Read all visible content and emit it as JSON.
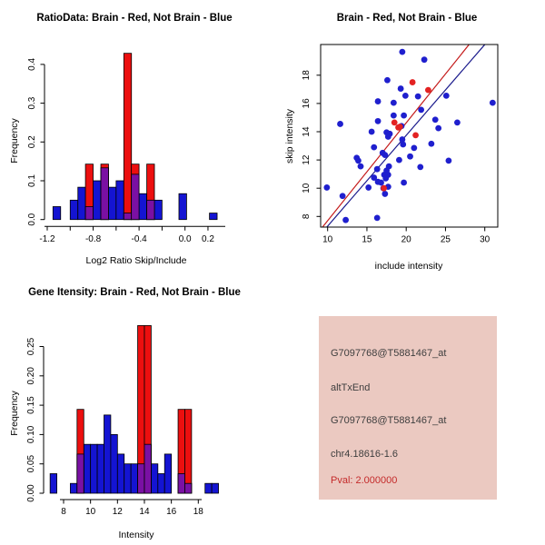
{
  "window_title": "R Graphics Output",
  "colors": {
    "background": "#FFFFFF",
    "axis_black": "#000000",
    "not_brain_blue": "#1414D2",
    "brain_red": "#EC0F0F",
    "overlap_purple": "#7A10A3",
    "point_blue": "#1F1FCE",
    "point_red": "#E32222",
    "red_line": "#C41A1A",
    "blue_line": "#1A1A8C",
    "panel_pink": "#EBC9C1",
    "info_text_gray": "#3E3E3E",
    "pval_red": "#C42A2A"
  },
  "chart_data": [
    {
      "id": "ratio_histogram",
      "type": "bar",
      "title": "RatioData: Brain - Red, Not Brain - Blue",
      "xlabel": "Log2 Ratio Skip/Include",
      "ylabel": "Frequency",
      "xlim": [
        -1.25,
        0.34
      ],
      "ylim": [
        0,
        0.45
      ],
      "bin_width": 0.0667,
      "x_ticks": [
        {
          "v": -1.2,
          "label": "-1.2"
        },
        {
          "v": -1.0,
          "label": ""
        },
        {
          "v": -0.8,
          "label": "-0.8"
        },
        {
          "v": -0.6,
          "label": ""
        },
        {
          "v": -0.4,
          "label": "-0.4"
        },
        {
          "v": -0.2,
          "label": ""
        },
        {
          "v": 0.0,
          "label": "0.0"
        },
        {
          "v": 0.2,
          "label": "0.2"
        }
      ],
      "y_ticks": [
        {
          "v": 0.0,
          "label": "0.0"
        },
        {
          "v": 0.1,
          "label": "0.1"
        },
        {
          "v": 0.2,
          "label": "0.2"
        },
        {
          "v": 0.3,
          "label": "0.3"
        },
        {
          "v": 0.4,
          "label": "0.4"
        }
      ],
      "series": [
        {
          "name": "Not Brain",
          "color_key": "not_brain_blue",
          "bars": [
            [
              -1.15,
              0.0333
            ],
            [
              -1.0,
              0.05
            ],
            [
              -0.933,
              0.0833
            ],
            [
              -0.867,
              0.0333
            ],
            [
              -0.8,
              0.1
            ],
            [
              -0.733,
              0.1333
            ],
            [
              -0.667,
              0.0833
            ],
            [
              -0.6,
              0.1
            ],
            [
              -0.533,
              0.0167
            ],
            [
              -0.467,
              0.1167
            ],
            [
              -0.4,
              0.0667
            ],
            [
              -0.333,
              0.05
            ],
            [
              -0.267,
              0.05
            ],
            [
              -0.053,
              0.0667
            ],
            [
              0.213,
              0.0167
            ]
          ]
        },
        {
          "name": "Brain",
          "color_key": "brain_red",
          "bars": [
            [
              -0.867,
              0.1429
            ],
            [
              -0.733,
              0.1429
            ],
            [
              -0.533,
              0.4286
            ],
            [
              -0.467,
              0.1429
            ],
            [
              -0.333,
              0.1429
            ]
          ]
        }
      ]
    },
    {
      "id": "intensity_scatter",
      "type": "scatter",
      "title": "Brain - Red, Not Brain - Blue",
      "xlabel": "include intensity",
      "ylabel": "skip intensity",
      "xlim": [
        9.1,
        31.65
      ],
      "ylim": [
        7.25,
        20.17
      ],
      "x_ticks": [
        {
          "v": 10,
          "label": "10"
        },
        {
          "v": 15,
          "label": "15"
        },
        {
          "v": 20,
          "label": "20"
        },
        {
          "v": 25,
          "label": "25"
        },
        {
          "v": 30,
          "label": "30"
        }
      ],
      "y_ticks": [
        {
          "v": 8,
          "label": "8"
        },
        {
          "v": 10,
          "label": "10"
        },
        {
          "v": 12,
          "label": "12"
        },
        {
          "v": 14,
          "label": "14"
        },
        {
          "v": 16,
          "label": "16"
        },
        {
          "v": 18,
          "label": "18"
        }
      ],
      "series": [
        {
          "name": "Not Brain",
          "color_key": "point_blue",
          "points": [
            [
              19.5,
              19.65
            ],
            [
              22.3,
              19.1
            ],
            [
              17.6,
              17.65
            ],
            [
              19.3,
              17.05
            ],
            [
              19.9,
              16.55
            ],
            [
              21.5,
              16.5
            ],
            [
              16.4,
              16.15
            ],
            [
              18.4,
              16.05
            ],
            [
              25.1,
              16.55
            ],
            [
              31.0,
              16.05
            ],
            [
              21.9,
              15.55
            ],
            [
              18.4,
              15.15
            ],
            [
              19.7,
              15.15
            ],
            [
              16.4,
              14.75
            ],
            [
              11.6,
              14.55
            ],
            [
              19.4,
              14.4
            ],
            [
              23.7,
              14.85
            ],
            [
              24.1,
              14.25
            ],
            [
              26.5,
              14.65
            ],
            [
              15.6,
              14.0
            ],
            [
              17.5,
              13.95
            ],
            [
              17.9,
              13.85
            ],
            [
              17.7,
              13.65
            ],
            [
              15.9,
              12.9
            ],
            [
              19.5,
              13.45
            ],
            [
              19.6,
              13.1
            ],
            [
              23.2,
              13.15
            ],
            [
              21.0,
              12.85
            ],
            [
              17.0,
              12.5
            ],
            [
              17.3,
              12.35
            ],
            [
              20.5,
              12.25
            ],
            [
              13.7,
              12.15
            ],
            [
              13.9,
              11.95
            ],
            [
              25.4,
              11.95
            ],
            [
              19.1,
              12.0
            ],
            [
              14.2,
              11.55
            ],
            [
              17.8,
              11.55
            ],
            [
              21.8,
              11.5
            ],
            [
              16.3,
              11.35
            ],
            [
              17.5,
              11.25
            ],
            [
              17.7,
              10.95
            ],
            [
              17.2,
              10.95
            ],
            [
              15.9,
              10.75
            ],
            [
              17.4,
              10.7
            ],
            [
              16.4,
              10.45
            ],
            [
              16.8,
              10.4
            ],
            [
              19.7,
              10.4
            ],
            [
              9.9,
              10.05
            ],
            [
              17.1,
              10.0
            ],
            [
              17.7,
              10.1
            ],
            [
              15.2,
              10.05
            ],
            [
              11.9,
              9.45
            ],
            [
              17.3,
              9.6
            ],
            [
              12.3,
              7.75
            ],
            [
              16.3,
              7.9
            ]
          ]
        },
        {
          "name": "Brain",
          "color_key": "point_red",
          "points": [
            [
              20.8,
              17.5
            ],
            [
              22.8,
              16.95
            ],
            [
              18.5,
              14.65
            ],
            [
              19.2,
              14.35
            ],
            [
              19.0,
              14.3
            ],
            [
              21.2,
              13.75
            ],
            [
              17.15,
              10.0
            ]
          ]
        }
      ],
      "lines": [
        {
          "name": "brain-fit-line",
          "color_key": "red_line",
          "x1": 9.35,
          "y1": 7.25,
          "x2": 28.0,
          "y2": 20.17
        },
        {
          "name": "not-brain-fit-line",
          "color_key": "blue_line",
          "x1": 9.9,
          "y1": 7.25,
          "x2": 30.0,
          "y2": 20.17
        }
      ]
    },
    {
      "id": "gene_intensity_histogram",
      "type": "bar",
      "title": "Gene Itensity: Brain - Red, Not Brain - Blue",
      "xlabel": "Intensity",
      "ylabel": "Frequency",
      "xlim": [
        6.7,
        19.8
      ],
      "ylim": [
        0,
        0.3
      ],
      "bin_width": 0.5,
      "x_ticks": [
        {
          "v": 8,
          "label": "8"
        },
        {
          "v": 10,
          "label": "10"
        },
        {
          "v": 12,
          "label": "12"
        },
        {
          "v": 14,
          "label": "14"
        },
        {
          "v": 16,
          "label": "16"
        },
        {
          "v": 18,
          "label": "18"
        }
      ],
      "y_ticks": [
        {
          "v": 0.0,
          "label": "0.00"
        },
        {
          "v": 0.05,
          "label": "0.05"
        },
        {
          "v": 0.1,
          "label": "0.10"
        },
        {
          "v": 0.15,
          "label": "0.15"
        },
        {
          "v": 0.2,
          "label": "0.20"
        },
        {
          "v": 0.25,
          "label": "0.25"
        }
      ],
      "series": [
        {
          "name": "Not Brain",
          "color_key": "not_brain_blue",
          "bars": [
            [
              7.0,
              0.0333
            ],
            [
              8.5,
              0.0167
            ],
            [
              9.0,
              0.0667
            ],
            [
              9.5,
              0.0833
            ],
            [
              10.0,
              0.0833
            ],
            [
              10.5,
              0.0833
            ],
            [
              11.0,
              0.1333
            ],
            [
              11.5,
              0.1
            ],
            [
              12.0,
              0.0667
            ],
            [
              12.5,
              0.05
            ],
            [
              13.0,
              0.05
            ],
            [
              13.5,
              0.05
            ],
            [
              14.0,
              0.0833
            ],
            [
              14.5,
              0.05
            ],
            [
              15.0,
              0.0333
            ],
            [
              15.5,
              0.0667
            ],
            [
              16.5,
              0.0333
            ],
            [
              17.0,
              0.0167
            ],
            [
              18.5,
              0.0167
            ],
            [
              19.0,
              0.0167
            ]
          ]
        },
        {
          "name": "Brain",
          "color_key": "brain_red",
          "bars": [
            [
              9.0,
              0.1429
            ],
            [
              13.5,
              0.2857
            ],
            [
              14.0,
              0.2857
            ],
            [
              16.5,
              0.1429
            ],
            [
              17.0,
              0.1429
            ]
          ]
        }
      ]
    }
  ],
  "info_panel": {
    "lines": [
      {
        "text": "G7097768@T5881467_at",
        "color_key": "info_text_gray"
      },
      {
        "text": "altTxEnd",
        "color_key": "info_text_gray"
      },
      {
        "text": "G7097768@T5881467_at",
        "color_key": "info_text_gray"
      },
      {
        "text": "chr4.18616-1.6",
        "color_key": "info_text_gray"
      },
      {
        "text": "Pval: 2.000000",
        "color_key": "pval_red"
      }
    ]
  }
}
